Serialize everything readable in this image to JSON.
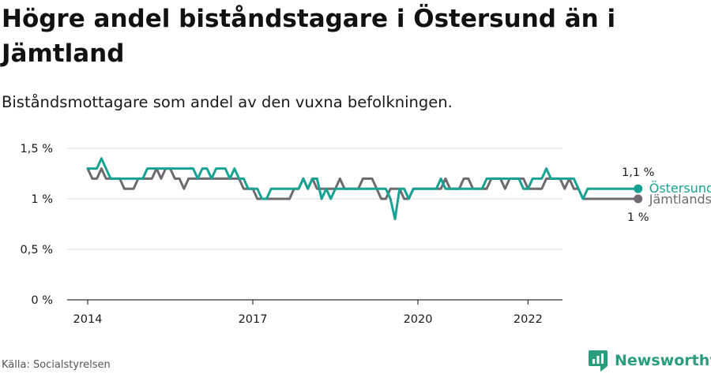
{
  "title": "Högre andel biståndstagare i Östersund än i Jämtland",
  "subtitle": "Biståndsmottagare som andel av den vuxna befolkningen.",
  "source": "Källa: Socialstyrelsen",
  "brand": {
    "name": "Newsworthy",
    "icon": "newsworthy-logo-icon"
  },
  "colors": {
    "ostersund": "#17a294",
    "jamtland": "#6e6a70",
    "grid": "#dddddd",
    "text": "#1a1a1a"
  },
  "chart_data": {
    "type": "line",
    "x_unit": "month",
    "x_start": "2014-01",
    "x_end": "2022-06",
    "x_ticks": [
      "2014",
      "2017",
      "2020",
      "2022"
    ],
    "y_ticks": [
      "0 %",
      "0,5 %",
      "1 %",
      "1,5 %"
    ],
    "ylim": [
      0,
      1.5
    ],
    "grid": "horizontal",
    "series": [
      {
        "name": "Östersunds kommun",
        "end_label": "1,1 %",
        "values": [
          1.3,
          1.3,
          1.3,
          1.4,
          1.3,
          1.2,
          1.2,
          1.2,
          1.2,
          1.2,
          1.2,
          1.2,
          1.2,
          1.3,
          1.3,
          1.3,
          1.3,
          1.3,
          1.3,
          1.3,
          1.3,
          1.3,
          1.3,
          1.3,
          1.2,
          1.3,
          1.3,
          1.2,
          1.3,
          1.3,
          1.3,
          1.2,
          1.3,
          1.2,
          1.2,
          1.1,
          1.1,
          1.1,
          1.0,
          1.0,
          1.1,
          1.1,
          1.1,
          1.1,
          1.1,
          1.1,
          1.1,
          1.2,
          1.1,
          1.2,
          1.2,
          1.0,
          1.1,
          1.0,
          1.1,
          1.1,
          1.1,
          1.1,
          1.1,
          1.1,
          1.1,
          1.1,
          1.1,
          1.1,
          1.1,
          1.1,
          1.0,
          0.8,
          1.1,
          1.1,
          1.0,
          1.1,
          1.1,
          1.1,
          1.1,
          1.1,
          1.1,
          1.2,
          1.1,
          1.1,
          1.1,
          1.1,
          1.1,
          1.1,
          1.1,
          1.1,
          1.1,
          1.2,
          1.2,
          1.2,
          1.2,
          1.2,
          1.2,
          1.2,
          1.2,
          1.1,
          1.1,
          1.2,
          1.2,
          1.2,
          1.3,
          1.2,
          1.2,
          1.2,
          1.2,
          1.2,
          1.2,
          1.1,
          1.0,
          1.1,
          1.1,
          1.1,
          1.1,
          1.1,
          1.1,
          1.1,
          1.1,
          1.1,
          1.1,
          1.1,
          1.1
        ]
      },
      {
        "name": "Jämtlands län",
        "end_label": "1 %",
        "values": [
          1.3,
          1.2,
          1.2,
          1.3,
          1.2,
          1.2,
          1.2,
          1.2,
          1.1,
          1.1,
          1.1,
          1.2,
          1.2,
          1.2,
          1.2,
          1.3,
          1.2,
          1.3,
          1.3,
          1.2,
          1.2,
          1.1,
          1.2,
          1.2,
          1.2,
          1.2,
          1.2,
          1.2,
          1.2,
          1.2,
          1.2,
          1.2,
          1.2,
          1.2,
          1.1,
          1.1,
          1.1,
          1.0,
          1.0,
          1.0,
          1.0,
          1.0,
          1.0,
          1.0,
          1.0,
          1.1,
          1.1,
          1.2,
          1.1,
          1.2,
          1.1,
          1.1,
          1.1,
          1.1,
          1.1,
          1.2,
          1.1,
          1.1,
          1.1,
          1.1,
          1.2,
          1.2,
          1.2,
          1.1,
          1.0,
          1.0,
          1.1,
          1.1,
          1.1,
          1.0,
          1.0,
          1.1,
          1.1,
          1.1,
          1.1,
          1.1,
          1.1,
          1.1,
          1.2,
          1.1,
          1.1,
          1.1,
          1.2,
          1.2,
          1.1,
          1.1,
          1.1,
          1.1,
          1.2,
          1.2,
          1.2,
          1.1,
          1.2,
          1.2,
          1.2,
          1.2,
          1.1,
          1.1,
          1.1,
          1.1,
          1.2,
          1.2,
          1.2,
          1.2,
          1.1,
          1.2,
          1.1,
          1.1,
          1.0,
          1.0,
          1.0,
          1.0,
          1.0,
          1.0,
          1.0,
          1.0,
          1.0,
          1.0,
          1.0,
          1.0,
          1.0
        ]
      }
    ]
  }
}
